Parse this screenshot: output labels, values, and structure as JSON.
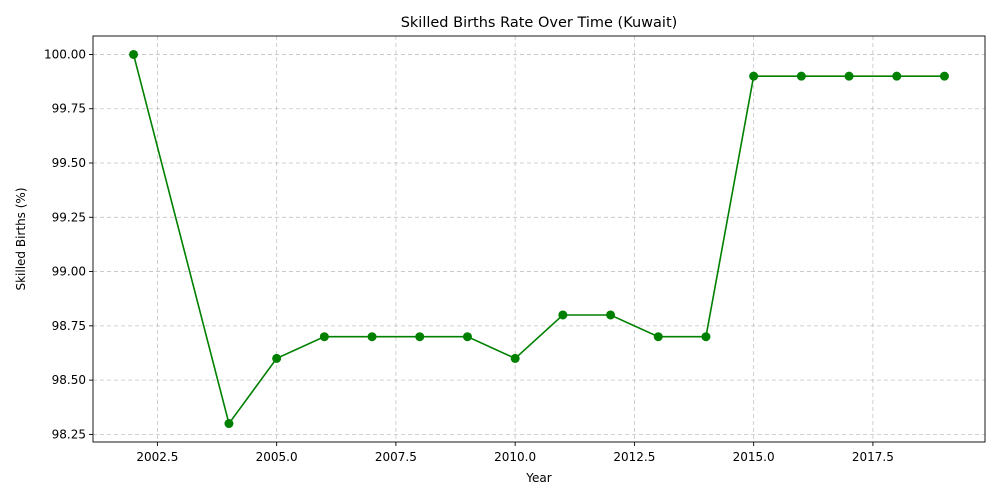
{
  "chart_data": {
    "type": "line",
    "title": "Skilled Births Rate Over Time (Kuwait)",
    "xlabel": "Year",
    "ylabel": "Skilled Births (%)",
    "xlim": [
      2001.15,
      2019.85
    ],
    "ylim": [
      98.215,
      100.085
    ],
    "xticks": [
      2002.5,
      2005.0,
      2007.5,
      2010.0,
      2012.5,
      2015.0,
      2017.5
    ],
    "xtick_labels": [
      "2002.5",
      "2005.0",
      "2007.5",
      "2010.0",
      "2012.5",
      "2015.0",
      "2017.5"
    ],
    "yticks": [
      98.25,
      98.5,
      98.75,
      99.0,
      99.25,
      99.5,
      99.75,
      100.0
    ],
    "ytick_labels": [
      "98.25",
      "98.50",
      "98.75",
      "99.00",
      "99.25",
      "99.50",
      "99.75",
      "100.00"
    ],
    "grid": true,
    "color": "#008000",
    "series": [
      {
        "x": [
          2002,
          2004,
          2005,
          2006,
          2007,
          2008,
          2009,
          2010,
          2011,
          2012,
          2013,
          2014,
          2015,
          2016,
          2017,
          2018,
          2019
        ],
        "y": [
          100.0,
          98.3,
          98.6,
          98.7,
          98.7,
          98.7,
          98.7,
          98.6,
          98.8,
          98.8,
          98.7,
          98.7,
          99.9,
          99.9,
          99.9,
          99.9,
          99.9
        ]
      }
    ]
  }
}
